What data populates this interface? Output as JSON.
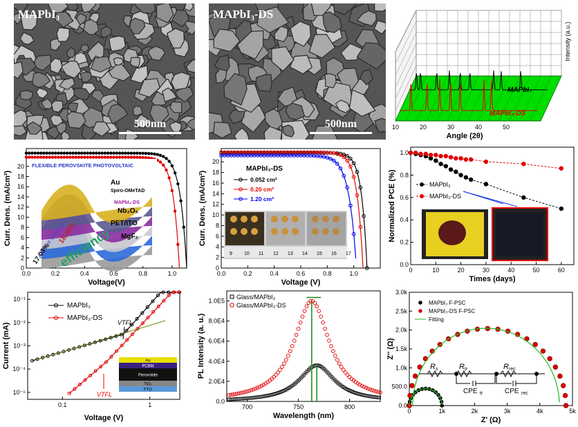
{
  "panels": {
    "sem1": {
      "label": "MAPbI₃",
      "scale": "500nm"
    },
    "sem2": {
      "label": "MAPbI₃-DS",
      "scale": "500nm"
    }
  },
  "chart_data": [
    {
      "id": "xrd",
      "type": "line",
      "title": "",
      "xlabel": "Angle (2θ)",
      "ylabel": "Intensity (a.u.)",
      "xticks": [
        "10",
        "20",
        "30",
        "40",
        "50"
      ],
      "series": [
        {
          "name": "MAPbI₃",
          "peaks": [
            12.6,
            14.1,
            19.9,
            24.5,
            28.4,
            31.9,
            40.5,
            43.2,
            50.3
          ]
        },
        {
          "name": "MAPbI₃-DS",
          "peaks": [
            14.1,
            19.9,
            24.5,
            28.4,
            31.9,
            40.5,
            43.2
          ]
        }
      ],
      "colors": {
        "front": "#e00000",
        "back": "#000000",
        "floor": "#00dd00"
      }
    },
    {
      "id": "jv1",
      "type": "line",
      "xlabel": "Voltage(V)",
      "ylabel": "Curr. Dens. (mA/cm²)",
      "xlim": [
        0,
        1.1
      ],
      "ylim": [
        0,
        22
      ],
      "xticks": [
        "0.0",
        "0.2",
        "0.4",
        "0.6",
        "0.8",
        "1.0"
      ],
      "yticks": [
        "0",
        "2",
        "4",
        "6",
        "8",
        "10",
        "12",
        "14",
        "16",
        "18",
        "20"
      ],
      "series": [
        {
          "name": "MAPbI₃",
          "jsc": 22.6,
          "voc": 1.1,
          "k": 22,
          "color": "#000000"
        },
        {
          "name": "MAPbI₃-DS",
          "jsc": 21.8,
          "voc": 1.05,
          "k": 24,
          "color": "#e00000"
        }
      ],
      "inset": {
        "title": "FLEXIBLE PEROVSKITE PHOTOVOLTAIC",
        "layers": [
          "Au",
          "Spiro-OMeTAD",
          "MAPbI₃-DS",
          "Nb₂O₅",
          "PET/ITO",
          "MgF₂"
        ],
        "text1": "Additive Strategy",
        "text2": "17.03%",
        "text3": "18.40%",
        "text4": "efficiency"
      }
    },
    {
      "id": "jv2",
      "type": "line",
      "xlabel": "Voltage (V)",
      "ylabel": "Curr. Dens. (mA/cm²)",
      "xlim": [
        0,
        1.2
      ],
      "ylim": [
        0,
        22
      ],
      "xticks": [
        "0.0",
        "0.2",
        "0.4",
        "0.6",
        "0.8",
        "1.0"
      ],
      "yticks": [
        "0",
        "2",
        "4",
        "6",
        "8",
        "10",
        "12",
        "14",
        "16",
        "18",
        "20"
      ],
      "legend_title": "MAPbI₃-DS",
      "series": [
        {
          "name": "0.052 cm²",
          "jsc": 21.7,
          "voc": 1.1,
          "k": 24,
          "color": "#000000"
        },
        {
          "name": "0.20 cm²",
          "jsc": 21.8,
          "voc": 1.07,
          "k": 22,
          "color": "#e00000"
        },
        {
          "name": "1.20 cm²",
          "jsc": 21.2,
          "voc": 1.02,
          "k": 18,
          "color": "#0000ee"
        }
      ],
      "ruler": [
        "9",
        "10",
        "11",
        "12",
        "13",
        "14",
        "15",
        "16",
        "17"
      ]
    },
    {
      "id": "stab",
      "type": "line",
      "xlabel": "Times (days)",
      "ylabel": "Normalized PCE (%)",
      "xlim": [
        0,
        65
      ],
      "ylim": [
        0,
        1.0
      ],
      "xticks": [
        "0",
        "10",
        "20",
        "30",
        "40",
        "50",
        "60"
      ],
      "yticks": [
        "0.0",
        "0.2",
        "0.4",
        "0.6",
        "0.8",
        "1.0"
      ],
      "series": [
        {
          "name": "MAPbI₃",
          "color": "#000000",
          "x": [
            0,
            2,
            4,
            6,
            8,
            10,
            12,
            14,
            16,
            18,
            20,
            22,
            24,
            30,
            45,
            60
          ],
          "y": [
            1.0,
            0.99,
            0.98,
            0.97,
            0.95,
            0.93,
            0.9,
            0.88,
            0.85,
            0.83,
            0.8,
            0.78,
            0.76,
            0.72,
            0.6,
            0.5
          ]
        },
        {
          "name": "MAPbI₃-DS",
          "color": "#e00000",
          "x": [
            0,
            2,
            4,
            6,
            8,
            10,
            12,
            14,
            16,
            18,
            20,
            22,
            24,
            30,
            45,
            60
          ],
          "y": [
            1.0,
            1.0,
            0.99,
            0.99,
            0.98,
            0.98,
            0.97,
            0.97,
            0.96,
            0.95,
            0.95,
            0.94,
            0.94,
            0.92,
            0.9,
            0.86
          ]
        }
      ]
    },
    {
      "id": "sclc",
      "type": "line",
      "xlabel": "Voltage (V)",
      "ylabel": "Current (mA)",
      "xscale": "log",
      "yscale": "log",
      "xlim": [
        0.04,
        2.2
      ],
      "ylim": [
        5e-06,
        0.2
      ],
      "xticks": [
        "0.1",
        "1"
      ],
      "yticks": [
        "10⁻⁵",
        "10⁻⁴",
        "10⁻³",
        "10⁻²",
        "10⁻¹"
      ],
      "series": [
        {
          "name": "MAPbI₃",
          "color": "#000000"
        },
        {
          "name": "MAPbI₃-DS",
          "color": "#e00000"
        }
      ],
      "annotations": {
        "vtfl_black": "VTFL",
        "vtfl_red": "VTFL"
      },
      "inset_layers": [
        "Au",
        "PCBM",
        "Perovskite",
        "TiO₂",
        "FTO"
      ]
    },
    {
      "id": "pl",
      "type": "line",
      "xlabel": "Wavelength (nm)",
      "ylabel": "PL Intensity (a. u.)",
      "xlim": [
        680,
        830
      ],
      "ylim": [
        0,
        110000
      ],
      "xticks": [
        "700",
        "750",
        "800"
      ],
      "yticks": [
        "0.0",
        "2.0E4",
        "4.0E4",
        "6.0E4",
        "8.0E4",
        "1.0E5"
      ],
      "series": [
        {
          "name": "Glass/MAPbI₃",
          "color": "#000000",
          "peak_nm": 768,
          "peak": 36000,
          "fwhm": 42
        },
        {
          "name": "Glass/MAPbI₃-DS",
          "color": "#e00000",
          "peak_nm": 763,
          "peak": 100000,
          "fwhm": 42
        }
      ]
    },
    {
      "id": "eis",
      "type": "scatter",
      "xlabel": "Z' (Ω)",
      "ylabel": "Z'' (Ω)",
      "xlim": [
        0,
        5000
      ],
      "ylim": [
        0,
        3000
      ],
      "xticks": [
        "0",
        "1k",
        "2k",
        "3k",
        "4k",
        "5k"
      ],
      "yticks": [
        "0.0",
        "500.0",
        "1.0k",
        "1.5k",
        "2.0k",
        "2.5k",
        "3.0k"
      ],
      "series": [
        {
          "name": "MAPbI₃ F-PSC",
          "color": "#000000",
          "x0": 0,
          "x1": 1000
        },
        {
          "name": "MAPbI₃-DS F-PSC",
          "color": "#e00000",
          "x0": 0,
          "x1": 4800
        },
        {
          "name": "Fitting",
          "color": "#22bb22"
        }
      ],
      "circuit": {
        "r1": "R",
        "r1sub": "s",
        "r2": "R",
        "r2sub": "tr",
        "r3": "R",
        "r3sub": "rec",
        "c1": "CPE",
        "c1sub": "tr",
        "c2": "CPE",
        "c2sub": "rec"
      }
    }
  ]
}
